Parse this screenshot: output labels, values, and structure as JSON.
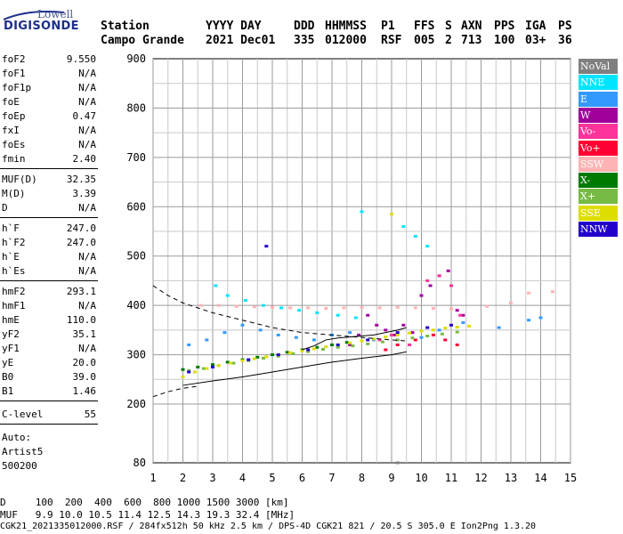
{
  "logo": {
    "top": "Lowell",
    "bottom": "DIGISONDE"
  },
  "header": {
    "row1": [
      "Station",
      "YYYY DAY",
      "DDD",
      "HHMMSS",
      "P1",
      "FFS",
      "S",
      "AXN",
      "PPS",
      "IGA",
      "PS"
    ],
    "row2": [
      "Campo Grande",
      "2021 Dec01",
      "335",
      "012000",
      "RSF",
      "005",
      "2",
      "713",
      "100",
      "03+",
      "36"
    ]
  },
  "params": {
    "group1": [
      {
        "label": "foF2",
        "value": "9.550"
      },
      {
        "label": "foF1",
        "value": "N/A"
      },
      {
        "label": "foF1p",
        "value": "N/A"
      },
      {
        "label": "foE",
        "value": "N/A"
      },
      {
        "label": "foEp",
        "value": "0.47"
      },
      {
        "label": "fxI",
        "value": "N/A"
      },
      {
        "label": "foEs",
        "value": "N/A"
      },
      {
        "label": "fmin",
        "value": "2.40"
      }
    ],
    "group2": [
      {
        "label": "MUF(D)",
        "value": "32.35"
      },
      {
        "label": "M(D)",
        "value": "3.39"
      },
      {
        "label": "D",
        "value": "N/A"
      }
    ],
    "group3": [
      {
        "label": "h`F",
        "value": "247.0"
      },
      {
        "label": "h`F2",
        "value": "247.0"
      },
      {
        "label": "h`E",
        "value": "N/A"
      },
      {
        "label": "h`Es",
        "value": "N/A"
      }
    ],
    "group4": [
      {
        "label": "hmF2",
        "value": "293.1"
      },
      {
        "label": "hmF1",
        "value": "N/A"
      },
      {
        "label": "hmE",
        "value": "110.0"
      },
      {
        "label": "yF2",
        "value": "35.1"
      },
      {
        "label": "yF1",
        "value": "N/A"
      },
      {
        "label": "yE",
        "value": "20.0"
      },
      {
        "label": "B0",
        "value": "39.0"
      },
      {
        "label": "B1",
        "value": "1.46"
      }
    ],
    "group5": [
      {
        "label": "C-level",
        "value": "55"
      }
    ],
    "auto": [
      "Auto:",
      "Artist5",
      "500200"
    ]
  },
  "legend": [
    {
      "label": "NoVal",
      "color": "#808080"
    },
    {
      "label": "NNE",
      "color": "#00e5ff"
    },
    {
      "label": "E",
      "color": "#3399ff"
    },
    {
      "label": "W",
      "color": "#a0009a"
    },
    {
      "label": "Vo-",
      "color": "#ff3399"
    },
    {
      "label": "Vo+",
      "color": "#ff0033"
    },
    {
      "label": "SSW",
      "color": "#ffb3b3"
    },
    {
      "label": "X-",
      "color": "#007a00"
    },
    {
      "label": "X+",
      "color": "#77bb44"
    },
    {
      "label": "SSE",
      "color": "#dddd00"
    },
    {
      "label": "NNW",
      "color": "#2200cc"
    }
  ],
  "footer": {
    "line1": "D     100  200  400  600  800 1000 1500 3000 [km]",
    "line2": "MUF   9.9 10.0 10.5 11.4 12.5 14.3 19.3 32.4 [MHz]",
    "line3": "CGK21_2021335012000.RSF / 284fx512h 50 kHz 2.5 km / DPS-4D CGK21 821 / 20.5 S 305.0 E Ion2Png 1.3.20"
  },
  "chart_data": {
    "type": "scatter",
    "xlim": [
      1,
      15
    ],
    "ylim": [
      80,
      900
    ],
    "x_ticks": [
      "1",
      "2",
      "3",
      "4",
      "5",
      "6",
      "7",
      "8",
      "9",
      "10",
      "11",
      "12",
      "13",
      "14",
      "15"
    ],
    "y_ticks": [
      "900",
      "800",
      "700",
      "600",
      "500",
      "400",
      "300",
      "200",
      "80"
    ],
    "grid": true,
    "series": [
      {
        "name": "SSW",
        "color": "#ffb3b3",
        "x": [
          2.6,
          3.2,
          3.8,
          4.4,
          5.0,
          5.6,
          6.2,
          6.8,
          7.4,
          8.0,
          8.6,
          9.2,
          9.8,
          10.4,
          11.0,
          12.2,
          13.0,
          13.6,
          14.4
        ],
        "y": [
          400,
          400,
          398,
          397,
          396,
          395,
          395,
          394,
          395,
          396,
          395,
          396,
          395,
          394,
          393,
          398,
          405,
          425,
          428
        ]
      },
      {
        "name": "E",
        "color": "#3399ff",
        "x": [
          2.2,
          2.8,
          3.4,
          4.0,
          4.6,
          5.2,
          5.8,
          6.4,
          7.0,
          7.6,
          8.4,
          9.2,
          10.0,
          10.6,
          11.4,
          12.6,
          13.6,
          14.0
        ],
        "y": [
          320,
          330,
          345,
          360,
          350,
          340,
          335,
          330,
          340,
          345,
          330,
          330,
          335,
          350,
          365,
          355,
          370,
          375
        ]
      },
      {
        "name": "NNE",
        "color": "#00e5ff",
        "x": [
          3.1,
          3.5,
          4.1,
          4.7,
          5.3,
          5.9,
          6.5,
          7.2,
          7.8,
          8.0,
          9.4,
          9.8,
          10.2
        ],
        "y": [
          440,
          420,
          410,
          400,
          395,
          390,
          385,
          380,
          375,
          590,
          560,
          540,
          520
        ]
      },
      {
        "name": "W",
        "color": "#a0009a",
        "x": [
          7.6,
          7.9,
          8.2,
          8.5,
          8.8,
          9.1,
          9.4,
          9.7,
          10.0,
          10.3,
          10.6,
          10.9,
          11.2,
          11.4
        ],
        "y": [
          320,
          340,
          380,
          360,
          350,
          340,
          360,
          345,
          420,
          440,
          460,
          470,
          390,
          380
        ]
      },
      {
        "name": "Vo-",
        "color": "#ff3399",
        "x": [
          8.6,
          9.0,
          9.6,
          10.2,
          10.6,
          11.0,
          11.3
        ],
        "y": [
          330,
          340,
          320,
          450,
          460,
          440,
          380
        ]
      },
      {
        "name": "Vo+",
        "color": "#ff0033",
        "x": [
          8.8,
          9.2,
          9.8,
          10.4,
          10.8,
          11.2
        ],
        "y": [
          310,
          320,
          330,
          340,
          330,
          320
        ]
      },
      {
        "name": "X-",
        "color": "#007a00",
        "x": [
          2.0,
          2.5,
          3.0,
          3.5,
          4.0,
          4.5,
          5.0,
          5.5,
          6.0,
          6.5,
          7.0,
          7.5
        ],
        "y": [
          270,
          275,
          280,
          285,
          290,
          295,
          300,
          305,
          310,
          315,
          320,
          325
        ]
      },
      {
        "name": "X+",
        "color": "#77bb44",
        "x": [
          2.2,
          2.7,
          3.2,
          3.7,
          4.2,
          4.7,
          5.2,
          5.7,
          6.2,
          6.7,
          7.2,
          7.7,
          8.2,
          8.7,
          9.2,
          9.7,
          10.2,
          10.7,
          11.2
        ],
        "y": [
          268,
          272,
          278,
          283,
          288,
          293,
          297,
          302,
          306,
          311,
          315,
          318,
          322,
          326,
          330,
          334,
          338,
          342,
          346
        ]
      },
      {
        "name": "SSE",
        "color": "#dddd00",
        "x": [
          2.0,
          2.4,
          2.8,
          3.2,
          3.6,
          4.0,
          4.4,
          4.8,
          5.2,
          5.6,
          6.0,
          6.4,
          6.8,
          7.2,
          7.6,
          8.0,
          8.4,
          8.8,
          9.2,
          9.6,
          10.0,
          10.4,
          10.8,
          11.2,
          11.6,
          9.0
        ],
        "y": [
          255,
          265,
          272,
          278,
          283,
          288,
          292,
          296,
          300,
          304,
          308,
          312,
          316,
          320,
          324,
          328,
          332,
          336,
          340,
          344,
          348,
          350,
          354,
          356,
          358,
          585
        ]
      },
      {
        "name": "NNW",
        "color": "#2200cc",
        "x": [
          2.2,
          3.0,
          4.2,
          5.2,
          6.2,
          7.2,
          8.2,
          9.2,
          10.2,
          11.0,
          4.8
        ],
        "y": [
          265,
          275,
          290,
          300,
          310,
          320,
          330,
          345,
          355,
          360,
          520
        ]
      },
      {
        "name": "NoVal",
        "color": "#808080",
        "x": [
          9.2
        ],
        "y": [
          80
        ]
      }
    ],
    "profile_solid": {
      "x": [
        2.0,
        3.0,
        4.0,
        5.0,
        6.0,
        7.0,
        8.0,
        9.0,
        9.5
      ],
      "y": [
        238,
        247,
        255,
        265,
        275,
        285,
        293,
        300,
        306
      ]
    },
    "profile_dashed_upper": {
      "x": [
        1.0,
        1.5,
        2.0,
        3.0,
        4.0,
        5.0,
        6.0,
        7.0,
        8.0,
        9.0,
        9.5
      ],
      "y": [
        440,
        420,
        405,
        385,
        370,
        355,
        345,
        340,
        335,
        330,
        328
      ]
    },
    "profile_dashed_lower": {
      "x": [
        1.0,
        1.5,
        2.0,
        2.5
      ],
      "y": [
        215,
        225,
        232,
        236
      ]
    },
    "trace_line": {
      "x": [
        6.0,
        6.4,
        6.8,
        7.2,
        7.6,
        8.0,
        8.4,
        8.8,
        9.2,
        9.5
      ],
      "y": [
        310,
        318,
        330,
        334,
        336,
        338,
        340,
        345,
        350,
        355
      ]
    }
  }
}
